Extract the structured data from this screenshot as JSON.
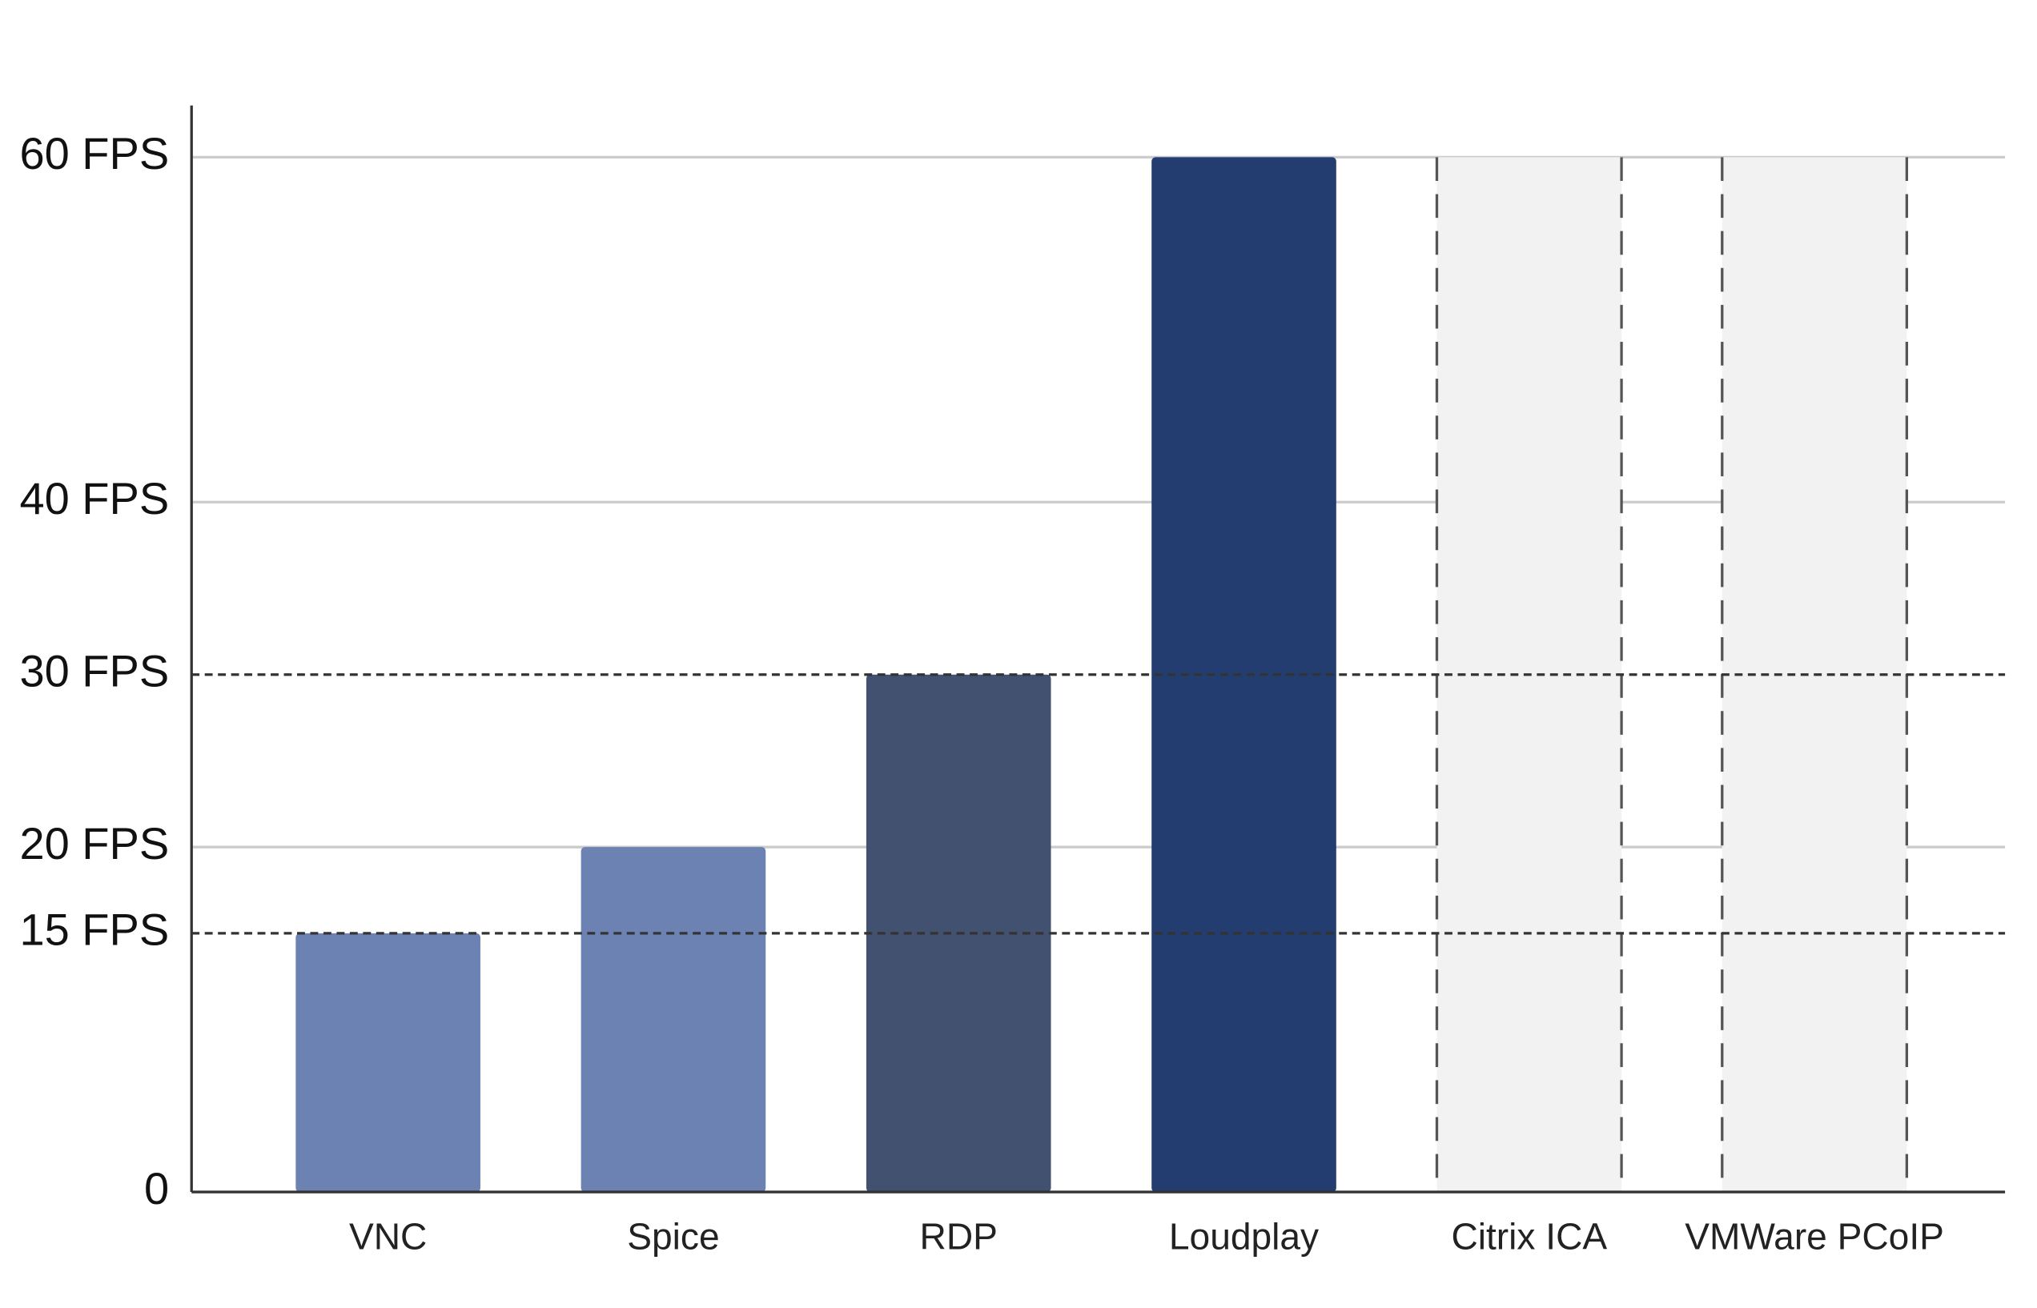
{
  "chart_data": {
    "type": "bar",
    "categories": [
      "VNC",
      "Spice",
      "RDP",
      "Loudplay",
      "Citrix ICA",
      "VMWare PCoIP"
    ],
    "values": [
      15,
      20,
      30,
      60,
      60,
      60
    ],
    "colors": [
      "#6b82b3",
      "#6b82b3",
      "#42516f",
      "#233d71",
      "#f2f2f2",
      "#f2f2f2"
    ],
    "bar_styles": [
      "solid",
      "solid",
      "solid",
      "solid",
      "dashed",
      "dashed"
    ],
    "ylim": [
      0,
      63
    ],
    "yticks": [
      0,
      {
        "value": 15,
        "label": "15 FPS"
      },
      {
        "value": 20,
        "label": "20 FPS"
      },
      {
        "value": 30,
        "label": "30 FPS"
      },
      {
        "value": 40,
        "label": "40 FPS"
      },
      {
        "value": 60,
        "label": "60 FPS"
      }
    ],
    "reference_lines": [
      15,
      30
    ],
    "grid": true
  }
}
